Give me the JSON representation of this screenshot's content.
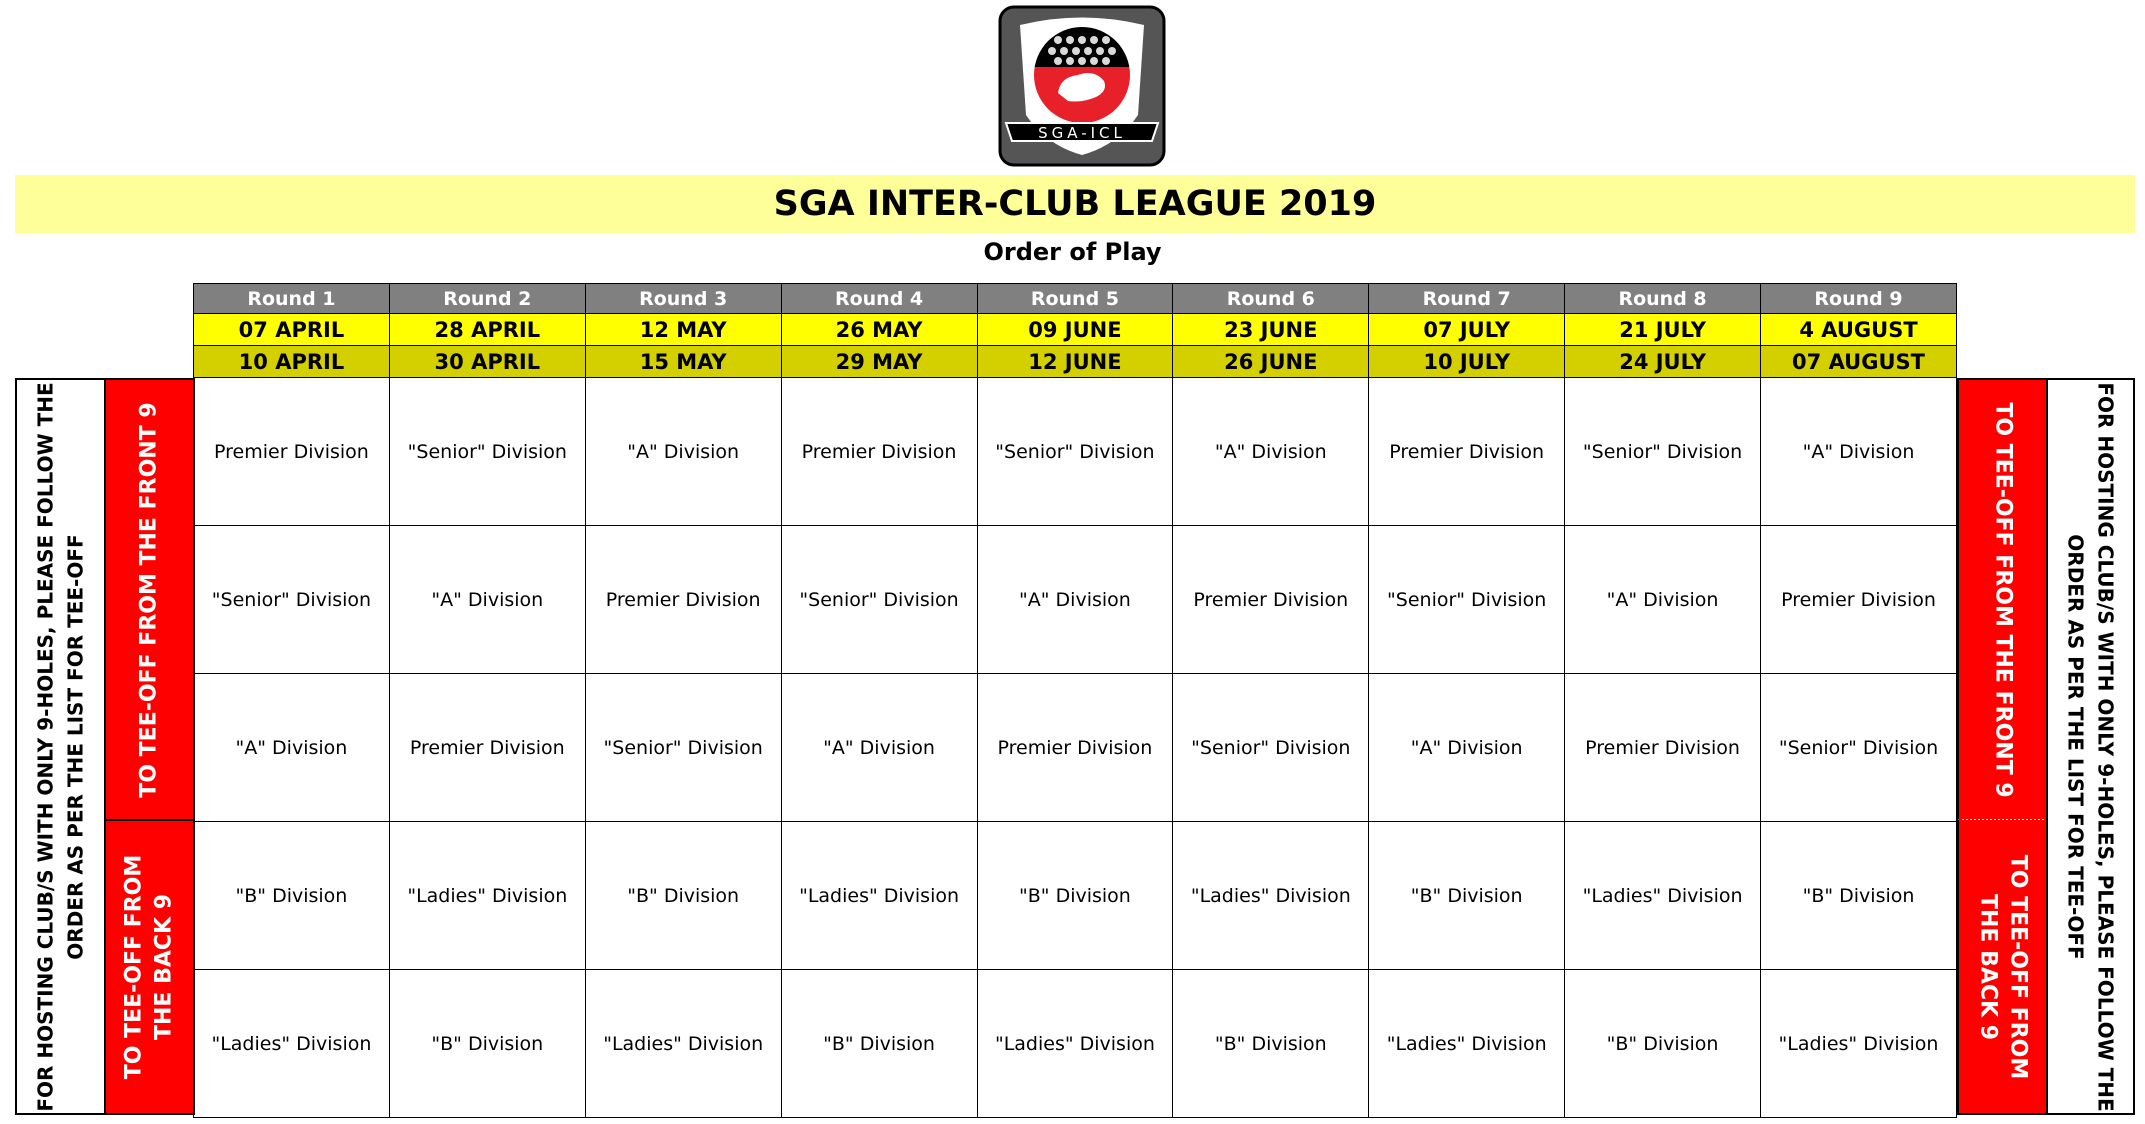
{
  "logo_text": "SGA-ICL",
  "title": "SGA INTER-CLUB LEAGUE 2019",
  "subtitle": "Order of Play",
  "left_note": [
    "FOR HOSTING CLUB/S WITH ONLY 9-HOLES, PLEASE FOLLOW THE",
    "ORDER AS PER THE LIST FOR TEE-OFF"
  ],
  "right_note": [
    "FOR HOSTING CLUB/S WITH ONLY 9-HOLES, PLEASE FOLLOW THE",
    "ORDER AS PER THE LIST FOR TEE-OFF"
  ],
  "front_label": "TO TEE-OFF FROM THE FRONT 9",
  "back_label": [
    "TO TEE-OFF FROM",
    "THE BACK 9"
  ],
  "colors": {
    "header": "#808080",
    "date1": "#ffff00",
    "date2": "#d4d000",
    "banner": "#ffff99",
    "tee": "#ff0000"
  },
  "rounds": [
    "Round 1",
    "Round 2",
    "Round 3",
    "Round 4",
    "Round 5",
    "Round 6",
    "Round 7",
    "Round 8",
    "Round 9"
  ],
  "dates1": [
    "07 APRIL",
    "28 APRIL",
    "12 MAY",
    "26 MAY",
    "09 JUNE",
    "23 JUNE",
    "07 JULY",
    "21 JULY",
    "4 AUGUST"
  ],
  "dates2": [
    "10 APRIL",
    "30 APRIL",
    "15 MAY",
    "29 MAY",
    "12 JUNE",
    "26 JUNE",
    "10 JULY",
    "24 JULY",
    "07 AUGUST"
  ],
  "rows": [
    [
      "Premier Division",
      "\"Senior\" Division",
      "\"A\" Division",
      "Premier Division",
      "\"Senior\" Division",
      "\"A\" Division",
      "Premier Division",
      "\"Senior\" Division",
      "\"A\" Division"
    ],
    [
      "\"Senior\" Division",
      "\"A\" Division",
      "Premier Division",
      "\"Senior\" Division",
      "\"A\" Division",
      "Premier Division",
      "\"Senior\" Division",
      "\"A\" Division",
      "Premier Division"
    ],
    [
      "\"A\" Division",
      "Premier Division",
      "\"Senior\" Division",
      "\"A\" Division",
      "Premier Division",
      "\"Senior\" Division",
      "\"A\" Division",
      "Premier Division",
      "\"Senior\" Division"
    ],
    [
      "\"B\" Division",
      "\"Ladies\" Division",
      "\"B\" Division",
      "\"Ladies\" Division",
      "\"B\" Division",
      "\"Ladies\" Division",
      "\"B\" Division",
      "\"Ladies\" Division",
      "\"B\" Division"
    ],
    [
      "\"Ladies\" Division",
      "\"B\" Division",
      "\"Ladies\" Division",
      "\"B\" Division",
      "\"Ladies\" Division",
      "\"B\" Division",
      "\"Ladies\" Division",
      "\"B\" Division",
      "\"Ladies\" Division"
    ]
  ]
}
